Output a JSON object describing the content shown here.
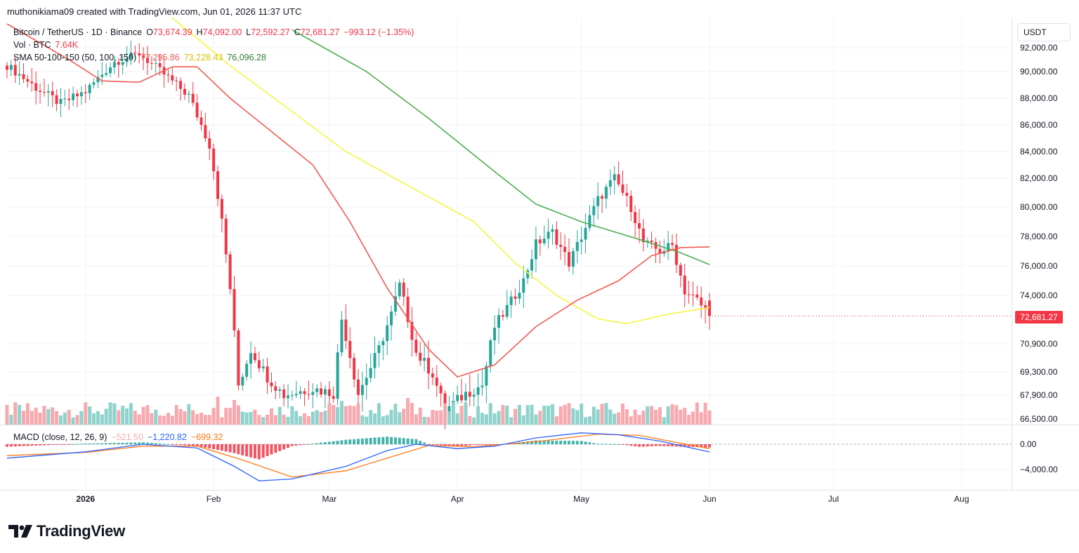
{
  "header": {
    "credit": "muthonikiama09 created with TradingView.com, Jun 01, 2026 11:37 UTC"
  },
  "legend": {
    "symbol": "Bitcoin / TetherUS · 1D · Binance",
    "o_label": "O",
    "o_value": "73,674.39",
    "h_label": "H",
    "h_value": "74,092.00",
    "l_label": "L",
    "l_value": "72,592.27",
    "c_label": "C",
    "c_value": "72,681.27",
    "change": "−993.12 (−1.35%)",
    "vol_label": "Vol · BTC",
    "vol_value": "7.64K",
    "sma_label": "SMA 50-100-150 (50, 100, 150)",
    "sma50": "77,295.86",
    "sma100": "73,228.43",
    "sma150": "76,096.28",
    "macd_label": "MACD (close, 12, 26, 9)",
    "macd_hist": "−521.50",
    "macd_line": "−1,220.82",
    "macd_signal": "−699.32"
  },
  "currency": "USDT",
  "last_price_tag": "72,681.27",
  "price_axis": [
    "92,000.00",
    "90,000.00",
    "88,000.00",
    "86,000.00",
    "84,000.00",
    "82,000.00",
    "80,000.00",
    "78,000.00",
    "76,000.00",
    "74,000.00",
    "70,900.00",
    "69,300.00",
    "67,900.00",
    "66,500.00"
  ],
  "macd_axis": [
    "0.00",
    "−4,000.00"
  ],
  "time_axis": [
    "2026",
    "Feb",
    "Mar",
    "Apr",
    "May",
    "Jun",
    "Jul",
    "Aug"
  ],
  "brand": "TradingView",
  "colors": {
    "up": "#26a69a",
    "down": "#f23645",
    "sma50": "#f05a52",
    "sma100": "#f5f542",
    "sma150": "#4caf50",
    "macd": "#2962ff",
    "signal": "#ff7a1a"
  },
  "chart_data": {
    "type": "candlestick",
    "title": "Bitcoin / TetherUS · 1D · Binance",
    "interval": "1D",
    "x_range": [
      "2025-12-13",
      "2026-06-01"
    ],
    "y_range": [
      66500,
      92700
    ],
    "last": {
      "open": 73674.39,
      "high": 74092.0,
      "low": 72592.27,
      "close": 72681.27,
      "change": -993.12,
      "change_pct": -1.35,
      "volume": "7.64K"
    },
    "candles": [
      {
        "date": "2025-12-20",
        "o": 89500,
        "h": 90600,
        "l": 88200,
        "c": 88800
      },
      {
        "date": "2025-12-26",
        "o": 88000,
        "h": 89000,
        "l": 86200,
        "c": 87600
      },
      {
        "date": "2026-01-01",
        "o": 87600,
        "h": 88900,
        "l": 87000,
        "c": 88500
      },
      {
        "date": "2026-01-08",
        "o": 89500,
        "h": 91000,
        "l": 89000,
        "c": 90800
      },
      {
        "date": "2026-01-14",
        "o": 91000,
        "h": 92500,
        "l": 90300,
        "c": 91500
      },
      {
        "date": "2026-01-20",
        "o": 91500,
        "h": 92200,
        "l": 89000,
        "c": 89800
      },
      {
        "date": "2026-01-26",
        "o": 89800,
        "h": 90200,
        "l": 86500,
        "c": 88200
      },
      {
        "date": "2026-02-01",
        "o": 84500,
        "h": 85000,
        "l": 78000,
        "c": 79000
      },
      {
        "date": "2026-02-04",
        "o": 78000,
        "h": 78500,
        "l": 73500,
        "c": 74500
      },
      {
        "date": "2026-02-06",
        "o": 74500,
        "h": 75000,
        "l": 66700,
        "c": 68000
      },
      {
        "date": "2026-02-12",
        "o": 68500,
        "h": 70500,
        "l": 66800,
        "c": 69500
      },
      {
        "date": "2026-02-18",
        "o": 69500,
        "h": 70300,
        "l": 67000,
        "c": 67900
      },
      {
        "date": "2026-02-25",
        "o": 67900,
        "h": 68800,
        "l": 66900,
        "c": 68300
      },
      {
        "date": "2026-03-03",
        "o": 68000,
        "h": 73300,
        "l": 66800,
        "c": 72800
      },
      {
        "date": "2026-03-09",
        "o": 69500,
        "h": 70300,
        "l": 67500,
        "c": 68000
      },
      {
        "date": "2026-03-14",
        "o": 68600,
        "h": 71500,
        "l": 68200,
        "c": 70600
      },
      {
        "date": "2026-03-17",
        "o": 70800,
        "h": 75800,
        "l": 70500,
        "c": 74800
      },
      {
        "date": "2026-03-22",
        "o": 71000,
        "h": 72000,
        "l": 69000,
        "c": 69800
      },
      {
        "date": "2026-03-28",
        "o": 68000,
        "h": 71000,
        "l": 66600,
        "c": 67000
      },
      {
        "date": "2026-04-03",
        "o": 67500,
        "h": 68500,
        "l": 66600,
        "c": 68000
      },
      {
        "date": "2026-04-09",
        "o": 69500,
        "h": 73200,
        "l": 69000,
        "c": 72000
      },
      {
        "date": "2026-04-15",
        "o": 71500,
        "h": 75300,
        "l": 71000,
        "c": 75000
      },
      {
        "date": "2026-04-21",
        "o": 77000,
        "h": 79300,
        "l": 76000,
        "c": 78000
      },
      {
        "date": "2026-04-27",
        "o": 77500,
        "h": 78600,
        "l": 75200,
        "c": 76500
      },
      {
        "date": "2026-05-03",
        "o": 78000,
        "h": 80800,
        "l": 77500,
        "c": 80500
      },
      {
        "date": "2026-05-09",
        "o": 80500,
        "h": 82600,
        "l": 80000,
        "c": 82000
      },
      {
        "date": "2026-05-13",
        "o": 81500,
        "h": 82000,
        "l": 79000,
        "c": 79500
      },
      {
        "date": "2026-05-18",
        "o": 78000,
        "h": 78500,
        "l": 76500,
        "c": 77000
      },
      {
        "date": "2026-05-24",
        "o": 77500,
        "h": 78200,
        "l": 74200,
        "c": 74600
      },
      {
        "date": "2026-05-28",
        "o": 73800,
        "h": 74200,
        "l": 72800,
        "c": 73700
      },
      {
        "date": "2026-06-01",
        "o": 73674.39,
        "h": 74092.0,
        "l": 72592.27,
        "c": 72681.27
      }
    ],
    "series": [
      {
        "name": "SMA 50",
        "value": 77295.86
      },
      {
        "name": "SMA 100",
        "value": 73228.43
      },
      {
        "name": "SMA 150",
        "value": 76096.28
      }
    ],
    "macd": {
      "params": "close, 12, 26, 9",
      "histogram": -521.5,
      "macd": -1220.82,
      "signal": -699.32,
      "axis_ticks": [
        0,
        -4000
      ]
    },
    "xlabel": "",
    "ylabel": "",
    "grid": true,
    "legend": "top-left"
  }
}
